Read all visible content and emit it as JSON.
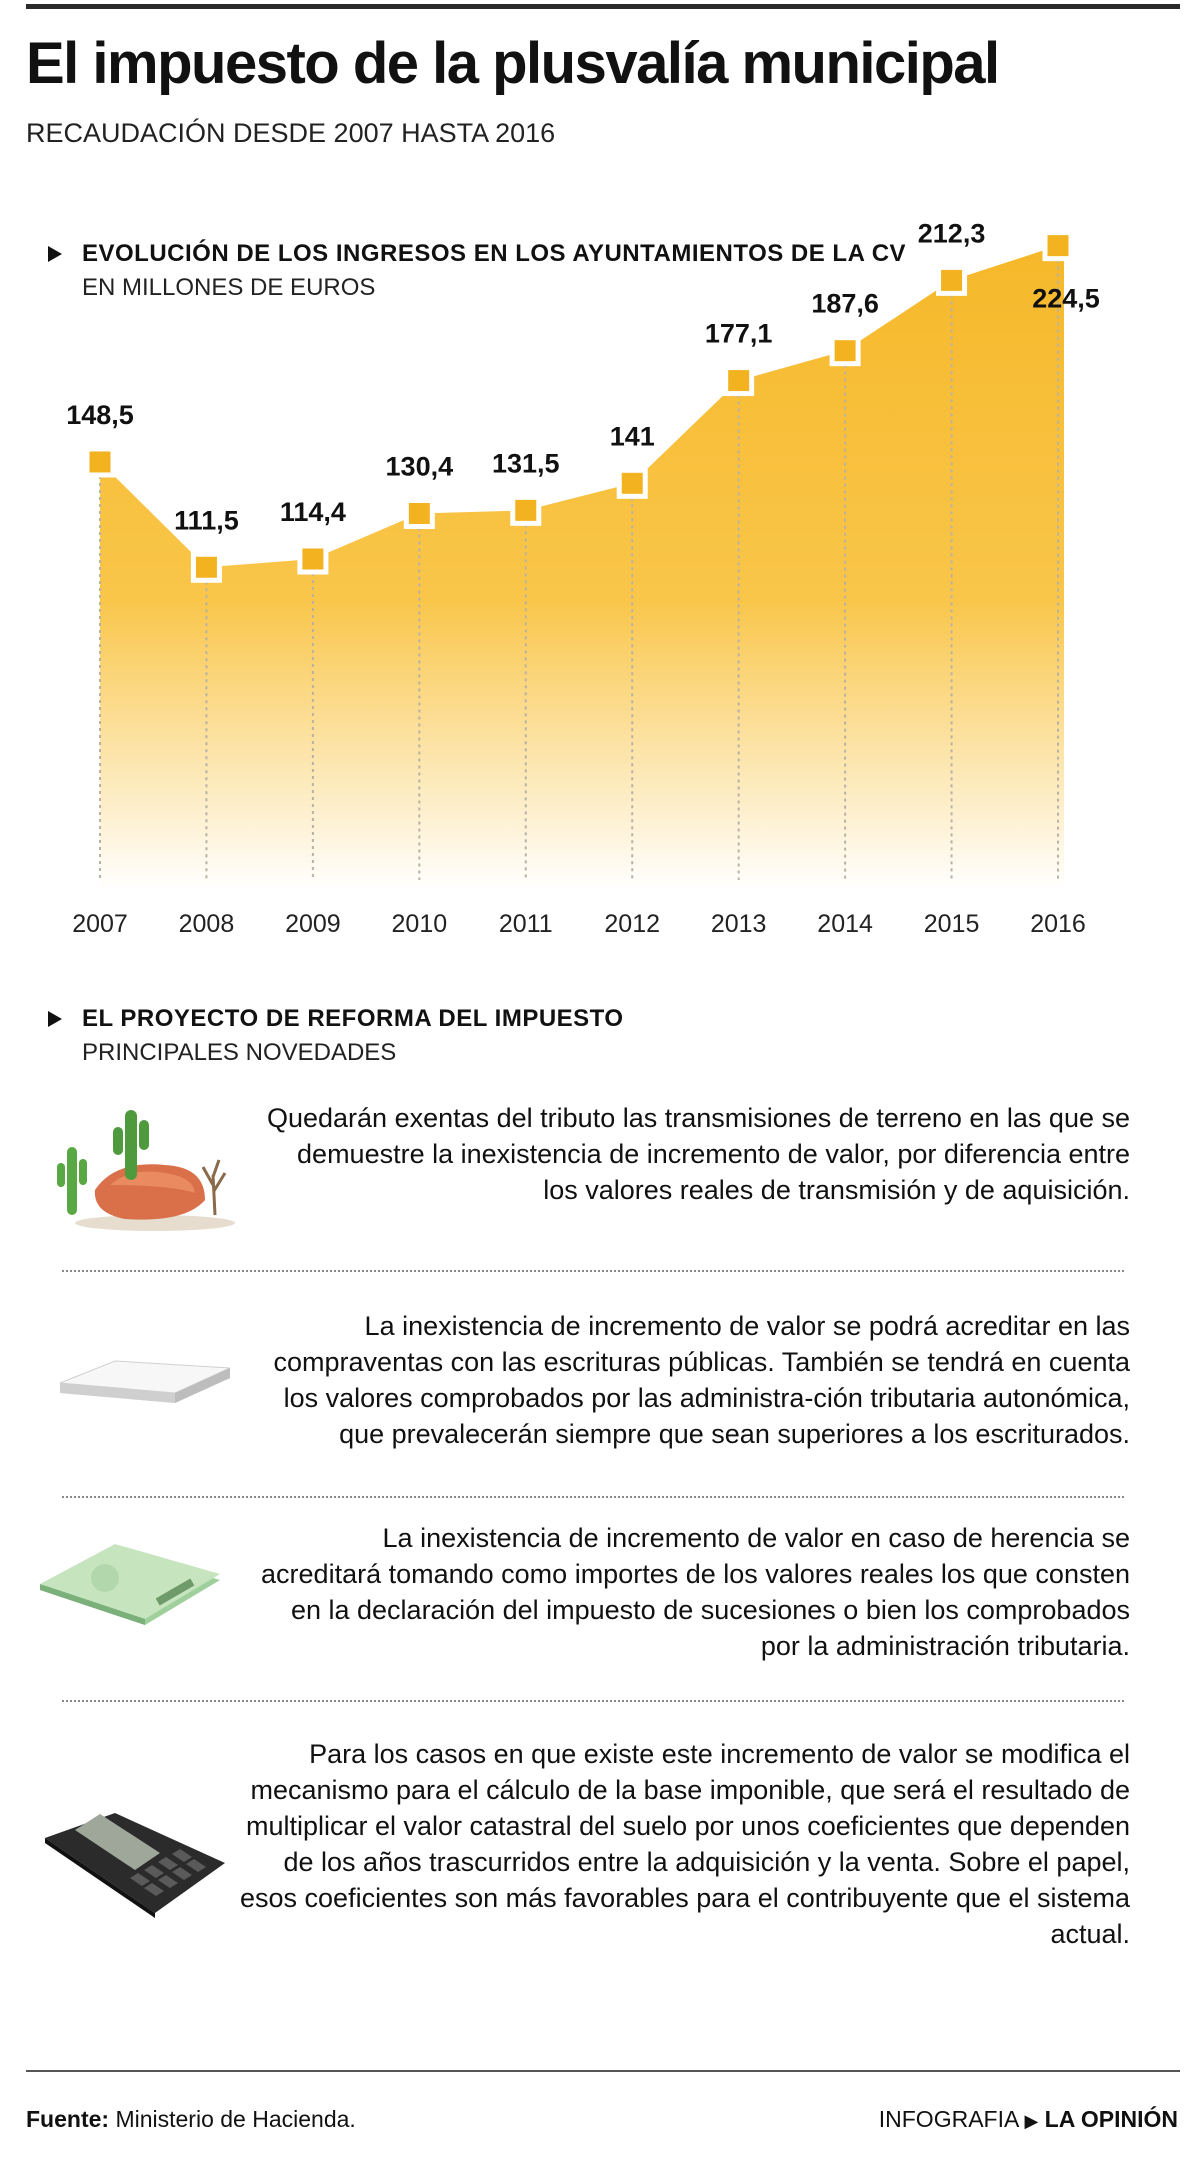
{
  "header": {
    "title": "El impuesto de la plusvalía municipal",
    "subtitle": "RECAUDACIÓN DESDE 2007 HASTA 2016"
  },
  "chart_section": {
    "title": "EVOLUCIÓN DE LOS INGRESOS EN LOS AYUNTAMIENTOS DE LA CV",
    "subtitle": "EN MILLONES DE EUROS"
  },
  "chart_data": {
    "type": "area",
    "title": "EVOLUCIÓN DE LOS INGRESOS EN LOS AYUNTAMIENTOS DE LA CV",
    "ylabel": "EN MILLONES DE EUROS",
    "x": [
      "2007",
      "2008",
      "2009",
      "2010",
      "2011",
      "2012",
      "2013",
      "2014",
      "2015",
      "2016"
    ],
    "values": [
      148.5,
      111.5,
      114.4,
      130.4,
      131.5,
      141,
      177.1,
      187.6,
      212.3,
      224.5
    ],
    "labels": [
      "148,5",
      "111,5",
      "114,4",
      "130,4",
      "131,5",
      "141",
      "177,1",
      "187,6",
      "212,3",
      "224,5"
    ],
    "fill_color": "#f6b82a",
    "fill_fade_color": "#ffffff",
    "marker_color": "#f3b321",
    "marker_outline": "#ffffff",
    "drop_line_color": "#b9b2a4",
    "grid": false,
    "legend": "none"
  },
  "reform": {
    "title": "EL PROYECTO DE REFORMA DEL IMPUESTO",
    "subtitle": "PRINCIPALES NOVEDADES",
    "items": [
      {
        "icon": "cactus-rock-icon",
        "text": "Quedarán exentas del tributo las transmisiones de terreno en las que se demuestre la inexistencia de incremento de valor, por diferencia entre los valores reales de transmisión y de aquisición."
      },
      {
        "icon": "paper-stack-icon",
        "text": "La inexistencia de incremento de valor se podrá acreditar en las compraventas con las escrituras públicas. También se tendrá en cuenta los valores comprobados por las administra-ción tributaria autonómica, que prevalecerán siempre que sean superiores a los escriturados."
      },
      {
        "icon": "banknotes-icon",
        "text": "La inexistencia de incremento de valor en caso de herencia se acreditará tomando como importes de los valores reales los que consten en la declaración del impuesto de sucesiones o bien los comprobados por la administración tributaria."
      },
      {
        "icon": "calculator-icon",
        "text": "Para los casos en que existe este incremento de valor se modifica el mecanismo para el cálculo de la base imponible, que será el resultado de multiplicar el valor catastral del suelo por unos coeficientes  que dependen de los años trascurridos entre la adquisición y la venta. Sobre el papel, esos coeficientes son más favorables para el contribuyente que el sistema actual."
      }
    ]
  },
  "footer": {
    "source_label": "Fuente:",
    "source_value": "Ministerio de Hacienda.",
    "credit_prefix": "INFOGRAFIA",
    "credit_brand": "LA OPINIÓN"
  }
}
